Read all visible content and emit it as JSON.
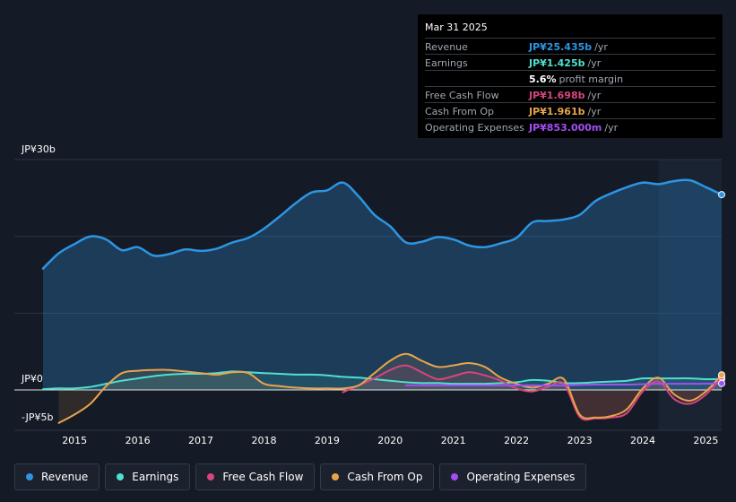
{
  "chart_data": {
    "type": "area",
    "y_axis_labels": [
      "JP¥30b",
      "JP¥0",
      "-JP¥5b"
    ],
    "ylim": [
      -5,
      30
    ],
    "xlim": [
      2014.5,
      2025.25
    ],
    "x_ticks": [
      "2015",
      "2016",
      "2017",
      "2018",
      "2019",
      "2020",
      "2021",
      "2022",
      "2023",
      "2024",
      "2025"
    ],
    "highlight_from": 2024.25,
    "series": [
      {
        "name": "Revenue",
        "color": "#2d95e3",
        "points": [
          [
            2014.5,
            15.8
          ],
          [
            2014.75,
            17.8
          ],
          [
            2015.0,
            19.0
          ],
          [
            2015.25,
            20.0
          ],
          [
            2015.5,
            19.6
          ],
          [
            2015.75,
            18.2
          ],
          [
            2016.0,
            18.6
          ],
          [
            2016.25,
            17.5
          ],
          [
            2016.5,
            17.7
          ],
          [
            2016.75,
            18.3
          ],
          [
            2017.0,
            18.1
          ],
          [
            2017.25,
            18.4
          ],
          [
            2017.5,
            19.2
          ],
          [
            2017.75,
            19.8
          ],
          [
            2018.0,
            21.0
          ],
          [
            2018.25,
            22.6
          ],
          [
            2018.5,
            24.3
          ],
          [
            2018.75,
            25.7
          ],
          [
            2019.0,
            26.0
          ],
          [
            2019.25,
            27.0
          ],
          [
            2019.5,
            25.2
          ],
          [
            2019.75,
            22.8
          ],
          [
            2020.0,
            21.3
          ],
          [
            2020.25,
            19.2
          ],
          [
            2020.5,
            19.3
          ],
          [
            2020.75,
            19.9
          ],
          [
            2021.0,
            19.6
          ],
          [
            2021.25,
            18.8
          ],
          [
            2021.5,
            18.6
          ],
          [
            2021.75,
            19.1
          ],
          [
            2022.0,
            19.8
          ],
          [
            2022.25,
            21.8
          ],
          [
            2022.5,
            22.0
          ],
          [
            2022.75,
            22.2
          ],
          [
            2023.0,
            22.8
          ],
          [
            2023.25,
            24.6
          ],
          [
            2023.5,
            25.6
          ],
          [
            2023.75,
            26.4
          ],
          [
            2024.0,
            27.0
          ],
          [
            2024.25,
            26.8
          ],
          [
            2024.5,
            27.2
          ],
          [
            2024.75,
            27.3
          ],
          [
            2025.0,
            26.4
          ],
          [
            2025.25,
            25.435
          ]
        ]
      },
      {
        "name": "Earnings",
        "color": "#4fe0cf",
        "points": [
          [
            2014.5,
            0.1
          ],
          [
            2014.75,
            0.2
          ],
          [
            2015.0,
            0.2
          ],
          [
            2015.25,
            0.4
          ],
          [
            2015.5,
            0.8
          ],
          [
            2015.75,
            1.2
          ],
          [
            2016.0,
            1.5
          ],
          [
            2016.25,
            1.8
          ],
          [
            2016.5,
            2.0
          ],
          [
            2016.75,
            2.1
          ],
          [
            2017.0,
            2.1
          ],
          [
            2017.25,
            2.2
          ],
          [
            2017.5,
            2.4
          ],
          [
            2017.75,
            2.3
          ],
          [
            2018.0,
            2.2
          ],
          [
            2018.25,
            2.1
          ],
          [
            2018.5,
            2.0
          ],
          [
            2018.75,
            2.0
          ],
          [
            2019.0,
            1.9
          ],
          [
            2019.25,
            1.7
          ],
          [
            2019.5,
            1.6
          ],
          [
            2019.75,
            1.4
          ],
          [
            2020.0,
            1.2
          ],
          [
            2020.25,
            1.0
          ],
          [
            2020.5,
            0.9
          ],
          [
            2020.75,
            0.9
          ],
          [
            2021.0,
            0.8
          ],
          [
            2021.25,
            0.8
          ],
          [
            2021.5,
            0.8
          ],
          [
            2021.75,
            0.9
          ],
          [
            2022.0,
            1.0
          ],
          [
            2022.25,
            1.3
          ],
          [
            2022.5,
            1.2
          ],
          [
            2022.75,
            0.9
          ],
          [
            2023.0,
            0.9
          ],
          [
            2023.25,
            1.0
          ],
          [
            2023.5,
            1.1
          ],
          [
            2023.75,
            1.2
          ],
          [
            2024.0,
            1.5
          ],
          [
            2024.25,
            1.5
          ],
          [
            2024.5,
            1.5
          ],
          [
            2024.75,
            1.5
          ],
          [
            2025.0,
            1.4
          ],
          [
            2025.25,
            1.425
          ]
        ]
      },
      {
        "name": "Free Cash Flow",
        "color": "#d6457e",
        "points": [
          [
            2019.25,
            -0.3
          ],
          [
            2019.5,
            0.6
          ],
          [
            2019.75,
            1.5
          ],
          [
            2020.0,
            2.6
          ],
          [
            2020.25,
            3.2
          ],
          [
            2020.5,
            2.3
          ],
          [
            2020.75,
            1.4
          ],
          [
            2021.0,
            1.8
          ],
          [
            2021.25,
            2.3
          ],
          [
            2021.5,
            1.9
          ],
          [
            2021.75,
            1.2
          ],
          [
            2022.0,
            0.2
          ],
          [
            2022.25,
            -0.2
          ],
          [
            2022.5,
            0.4
          ],
          [
            2022.75,
            0.8
          ],
          [
            2023.0,
            -3.5
          ],
          [
            2023.25,
            -3.7
          ],
          [
            2023.5,
            -3.6
          ],
          [
            2023.75,
            -3.0
          ],
          [
            2024.0,
            -0.2
          ],
          [
            2024.25,
            1.1
          ],
          [
            2024.5,
            -1.2
          ],
          [
            2024.75,
            -1.8
          ],
          [
            2025.0,
            -0.6
          ],
          [
            2025.25,
            1.698
          ]
        ]
      },
      {
        "name": "Cash From Op",
        "color": "#e8a44c",
        "points": [
          [
            2014.75,
            -4.3
          ],
          [
            2015.0,
            -3.2
          ],
          [
            2015.25,
            -1.8
          ],
          [
            2015.5,
            0.5
          ],
          [
            2015.75,
            2.2
          ],
          [
            2016.0,
            2.5
          ],
          [
            2016.25,
            2.6
          ],
          [
            2016.5,
            2.6
          ],
          [
            2016.75,
            2.4
          ],
          [
            2017.0,
            2.2
          ],
          [
            2017.25,
            2.0
          ],
          [
            2017.5,
            2.3
          ],
          [
            2017.75,
            2.2
          ],
          [
            2018.0,
            0.8
          ],
          [
            2018.25,
            0.5
          ],
          [
            2018.5,
            0.3
          ],
          [
            2018.75,
            0.2
          ],
          [
            2019.0,
            0.2
          ],
          [
            2019.25,
            0.2
          ],
          [
            2019.5,
            0.6
          ],
          [
            2019.75,
            2.2
          ],
          [
            2020.0,
            3.8
          ],
          [
            2020.25,
            4.7
          ],
          [
            2020.5,
            3.8
          ],
          [
            2020.75,
            3.0
          ],
          [
            2021.0,
            3.2
          ],
          [
            2021.25,
            3.5
          ],
          [
            2021.5,
            3.0
          ],
          [
            2021.75,
            1.6
          ],
          [
            2022.0,
            0.8
          ],
          [
            2022.25,
            0.3
          ],
          [
            2022.5,
            0.8
          ],
          [
            2022.75,
            1.4
          ],
          [
            2023.0,
            -3.2
          ],
          [
            2023.25,
            -3.6
          ],
          [
            2023.5,
            -3.4
          ],
          [
            2023.75,
            -2.5
          ],
          [
            2024.0,
            0.2
          ],
          [
            2024.25,
            1.6
          ],
          [
            2024.5,
            -0.6
          ],
          [
            2024.75,
            -1.4
          ],
          [
            2025.0,
            -0.2
          ],
          [
            2025.25,
            1.961
          ]
        ]
      },
      {
        "name": "Operating Expenses",
        "color": "#a34ef4",
        "points": [
          [
            2020.25,
            0.6
          ],
          [
            2020.75,
            0.6
          ],
          [
            2021.25,
            0.6
          ],
          [
            2021.75,
            0.6
          ],
          [
            2022.25,
            0.6
          ],
          [
            2022.75,
            0.6
          ],
          [
            2023.25,
            0.7
          ],
          [
            2023.75,
            0.7
          ],
          [
            2024.25,
            0.8
          ],
          [
            2024.75,
            0.8
          ],
          [
            2025.25,
            0.853
          ]
        ]
      }
    ]
  },
  "tooltip": {
    "date": "Mar 31 2025",
    "rows": [
      {
        "label": "Revenue",
        "value": "JP¥25.435b",
        "unit": "/yr",
        "color": "#2d95e3"
      },
      {
        "label": "Earnings",
        "value": "JP¥1.425b",
        "unit": "/yr",
        "color": "#4fe0cf"
      },
      {
        "label": "",
        "value": "5.6%",
        "unit": "profit margin",
        "color": "#ffffff"
      },
      {
        "label": "Free Cash Flow",
        "value": "JP¥1.698b",
        "unit": "/yr",
        "color": "#d6457e"
      },
      {
        "label": "Cash From Op",
        "value": "JP¥1.961b",
        "unit": "/yr",
        "color": "#e8a44c"
      },
      {
        "label": "Operating Expenses",
        "value": "JP¥853.000m",
        "unit": "/yr",
        "color": "#a34ef4"
      }
    ]
  },
  "legend": [
    {
      "label": "Revenue",
      "color": "#2d95e3"
    },
    {
      "label": "Earnings",
      "color": "#4fe0cf"
    },
    {
      "label": "Free Cash Flow",
      "color": "#d6457e"
    },
    {
      "label": "Cash From Op",
      "color": "#e8a44c"
    },
    {
      "label": "Operating Expenses",
      "color": "#a34ef4"
    }
  ]
}
